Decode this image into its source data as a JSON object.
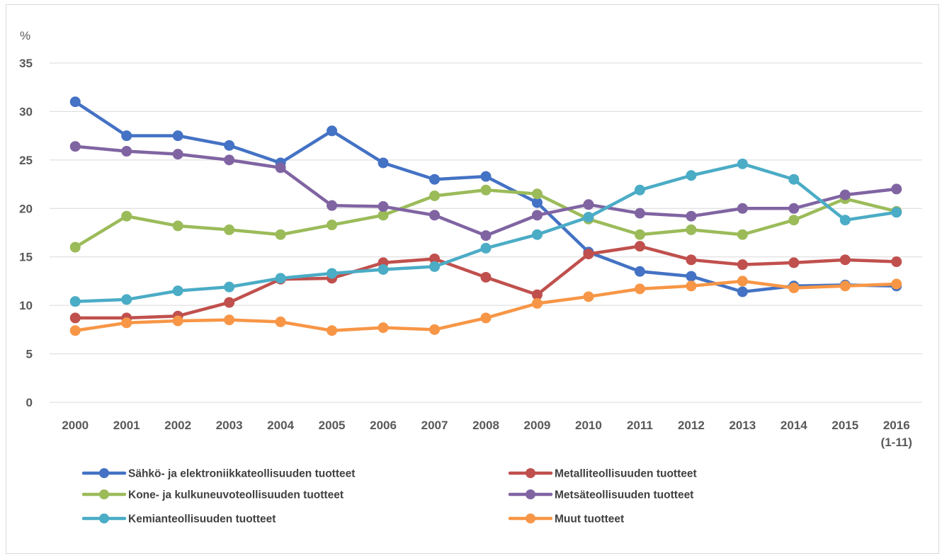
{
  "chart_data": {
    "type": "line",
    "title": "",
    "xlabel": "",
    "ylabel": "%",
    "ylim": [
      0,
      35
    ],
    "yticks": [
      0,
      5,
      10,
      15,
      20,
      25,
      30,
      35
    ],
    "grid": true,
    "legend_position": "bottom",
    "categories": [
      "2000",
      "2001",
      "2002",
      "2003",
      "2004",
      "2005",
      "2006",
      "2007",
      "2008",
      "2009",
      "2010",
      "2011",
      "2012",
      "2013",
      "2014",
      "2015",
      "2016\n(1-11)"
    ],
    "series": [
      {
        "name": "Sähkö- ja elektroniikkateollisuuden  tuotteet",
        "color": "#4472C4",
        "values": [
          31.0,
          27.5,
          27.5,
          26.5,
          24.7,
          28.0,
          24.7,
          23.0,
          23.3,
          20.6,
          15.5,
          13.5,
          13.0,
          11.4,
          12.0,
          12.1,
          12.0
        ]
      },
      {
        "name": "Metalliteollisuuden tuotteet",
        "color": "#C0504D",
        "values": [
          8.7,
          8.7,
          8.9,
          10.3,
          12.7,
          12.8,
          14.4,
          14.8,
          12.9,
          11.1,
          15.3,
          16.1,
          14.7,
          14.2,
          14.4,
          14.7,
          14.5
        ]
      },
      {
        "name": "Kone- ja kulkuneuvoteollisuuden tuotteet",
        "color": "#9BBB59",
        "values": [
          16.0,
          19.2,
          18.2,
          17.8,
          17.3,
          18.3,
          19.3,
          21.3,
          21.9,
          21.5,
          18.9,
          17.3,
          17.8,
          17.3,
          18.8,
          21.0,
          19.7
        ]
      },
      {
        "name": "Metsäteollisuuden tuotteet",
        "color": "#8064A2",
        "values": [
          26.4,
          25.9,
          25.6,
          25.0,
          24.2,
          20.3,
          20.2,
          19.3,
          17.2,
          19.3,
          20.4,
          19.5,
          19.2,
          20.0,
          20.0,
          21.4,
          22.0
        ]
      },
      {
        "name": "Kemianteollisuuden tuotteet",
        "color": "#4BACC6",
        "values": [
          10.4,
          10.6,
          11.5,
          11.9,
          12.8,
          13.3,
          13.7,
          14.0,
          15.9,
          17.3,
          19.1,
          21.9,
          23.4,
          24.6,
          23.0,
          18.8,
          19.6
        ]
      },
      {
        "name": "Muut tuotteet",
        "color": "#F79646",
        "values": [
          7.4,
          8.2,
          8.4,
          8.5,
          8.3,
          7.4,
          7.7,
          7.5,
          8.7,
          10.2,
          10.9,
          11.7,
          12.0,
          12.5,
          11.8,
          12.0,
          12.2
        ]
      }
    ]
  }
}
